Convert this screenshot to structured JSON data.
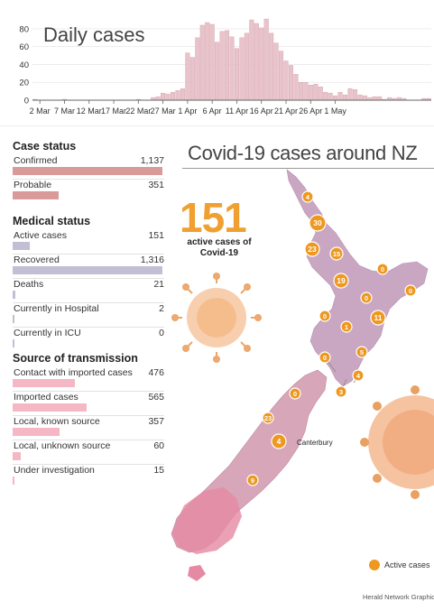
{
  "chart_data": {
    "type": "bar",
    "title": "Daily cases",
    "ylim": [
      0,
      90
    ],
    "yticks": [
      "80",
      "60",
      "40",
      "20",
      "0"
    ],
    "xtick_labels": [
      "2 Mar",
      "7 Mar",
      "12 Mar",
      "17 Mar",
      "22 Mar",
      "27 Mar",
      "1 Apr",
      "6 Apr",
      "11 Apr",
      "16 Apr",
      "21 Apr",
      "26 Apr",
      "1 May"
    ],
    "values": [
      1,
      0,
      0,
      0,
      0,
      0,
      1,
      0,
      0,
      0,
      0,
      0,
      0,
      0,
      0,
      0,
      0,
      0,
      0,
      0,
      0,
      1,
      0,
      0,
      3,
      4,
      8,
      7,
      9,
      11,
      13,
      53,
      48,
      70,
      84,
      87,
      85,
      65,
      77,
      78,
      71,
      58,
      70,
      75,
      90,
      86,
      81,
      91,
      75,
      64,
      55,
      44,
      39,
      29,
      20,
      20,
      17,
      18,
      15,
      9,
      8,
      5,
      9,
      6,
      13,
      12,
      6,
      5,
      3,
      4,
      4,
      1,
      3,
      2,
      3,
      2,
      0,
      0,
      0,
      2,
      2
    ]
  },
  "map_title": "Covid-19 cases around NZ",
  "big_number": "151",
  "big_caption": "active cases of Covid-19",
  "case_status": {
    "title": "Case status",
    "max": 1137,
    "rows": [
      {
        "label": "Confirmed",
        "value": "1,137",
        "amount": 1137
      },
      {
        "label": "Probable",
        "value": "351",
        "amount": 351
      }
    ]
  },
  "medical_status": {
    "title": "Medical status",
    "max": 1316,
    "rows": [
      {
        "label": "Active cases",
        "value": "151",
        "amount": 151
      },
      {
        "label": "Recovered",
        "value": "1,316",
        "amount": 1316
      },
      {
        "label": "Deaths",
        "value": "21",
        "amount": 21
      },
      {
        "label": "Currently in Hospital",
        "value": "2",
        "amount": 2
      },
      {
        "label": "Currently in ICU",
        "value": "0",
        "amount": 0
      }
    ]
  },
  "transmission": {
    "title": "Source of transmission",
    "max": 1137,
    "rows": [
      {
        "label": "Contact with imported cases",
        "value": "476",
        "amount": 476
      },
      {
        "label": "Imported cases",
        "value": "565",
        "amount": 565
      },
      {
        "label": "Local, known source",
        "value": "357",
        "amount": 357
      },
      {
        "label": "Local, unknown source",
        "value": "60",
        "amount": 60
      },
      {
        "label": "Under investigation",
        "value": "15",
        "amount": 15
      }
    ]
  },
  "markers": [
    "4",
    "30",
    "23",
    "15",
    "19",
    "0",
    "0",
    "0",
    "0",
    "11",
    "1",
    "5",
    "0",
    "4",
    "3",
    "0",
    "23",
    "4",
    "9"
  ],
  "canterbury_label": "Canterbury",
  "legend_label": "Active cases",
  "credit": "Herald Network Graphic",
  "colors": {
    "bar_fill": "#e9c3cb",
    "bar_stroke": "#c98e9a",
    "case_bar": "#d99a9a",
    "medical_bar": "#c2bfd4",
    "transmission_bar": "#f4b7c3",
    "accent": "#f0a030",
    "marker": "#ee9820",
    "map_north": "#c8a8c0",
    "map_south": "#d8a8b8",
    "map_south_tip": "#e888a0"
  }
}
